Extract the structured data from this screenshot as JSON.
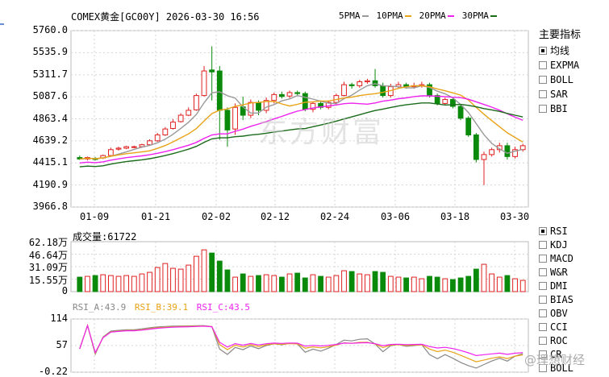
{
  "header": {
    "title": "COMEX黄金[GC00Y] 2026-03-30 16:56",
    "ma": [
      {
        "label": "5PMA",
        "color": "#999999"
      },
      {
        "label": "10PMA",
        "color": "#e8a317"
      },
      {
        "label": "20PMA",
        "color": "#ee22ee"
      },
      {
        "label": "30PMA",
        "color": "#1a6b1a"
      }
    ]
  },
  "price_axis": [
    "5760.0",
    "5535.9",
    "5311.7",
    "5087.6",
    "4863.4",
    "4639.2",
    "4415.1",
    "4190.9",
    "3966.8"
  ],
  "date_axis": [
    "01-09",
    "01-21",
    "02-02",
    "02-12",
    "02-24",
    "03-06",
    "03-18",
    "03-30"
  ],
  "volume": {
    "label": "成交量:61722",
    "axis": [
      "62.18万",
      "46.64万",
      "31.09万",
      "15.55万",
      "0"
    ]
  },
  "rsi": {
    "labels": [
      {
        "text": "RSI_A:43.9",
        "color": "#888888"
      },
      {
        "text": "RSI_B:39.1",
        "color": "#e8a317"
      },
      {
        "text": "RSI_C:43.5",
        "color": "#ee22ee"
      }
    ],
    "axis": [
      "114",
      "57",
      "-0.22"
    ]
  },
  "sidebar": {
    "title": "主要指标",
    "main_indicators": [
      {
        "label": "均线",
        "checked": true
      },
      {
        "label": "EXPMA",
        "checked": false
      },
      {
        "label": "BOLL",
        "checked": false
      },
      {
        "label": "SAR",
        "checked": false
      },
      {
        "label": "BBI",
        "checked": false
      }
    ],
    "sub_indicators": [
      {
        "label": "RSI",
        "checked": true
      },
      {
        "label": "KDJ",
        "checked": false
      },
      {
        "label": "MACD",
        "checked": false
      },
      {
        "label": "W&R",
        "checked": false
      },
      {
        "label": "DMI",
        "checked": false
      },
      {
        "label": "BIAS",
        "checked": false
      },
      {
        "label": "OBV",
        "checked": false
      },
      {
        "label": "CCI",
        "checked": false
      },
      {
        "label": "ROC",
        "checked": false
      },
      {
        "label": "CR",
        "checked": false
      },
      {
        "label": "BOLL",
        "checked": false
      }
    ]
  },
  "watermark": "东方财富",
  "weibo": "@理想财经",
  "colors": {
    "up": "#e02020",
    "down": "#0a8a0a",
    "grid": "#d6d6d6"
  },
  "chart_data": {
    "type": "candlestick",
    "candles": [
      [
        4470,
        4455,
        4490,
        4445
      ],
      [
        4455,
        4470,
        4480,
        4440
      ],
      [
        4460,
        4450,
        4475,
        4440
      ],
      [
        4465,
        4490,
        4500,
        4455
      ],
      [
        4490,
        4550,
        4570,
        4485
      ],
      [
        4555,
        4565,
        4580,
        4540
      ],
      [
        4565,
        4580,
        4590,
        4555
      ],
      [
        4575,
        4580,
        4590,
        4565
      ],
      [
        4580,
        4600,
        4610,
        4570
      ],
      [
        4600,
        4640,
        4655,
        4595
      ],
      [
        4640,
        4700,
        4720,
        4630
      ],
      [
        4700,
        4760,
        4780,
        4690
      ],
      [
        4765,
        4830,
        4860,
        4755
      ],
      [
        4835,
        4900,
        4920,
        4825
      ],
      [
        4900,
        4950,
        4980,
        4890
      ],
      [
        4955,
        5100,
        5120,
        4945
      ],
      [
        5100,
        5350,
        5400,
        5090
      ],
      [
        5360,
        5340,
        5600,
        5050
      ],
      [
        5350,
        4950,
        5400,
        4650
      ],
      [
        4950,
        4750,
        4980,
        4580
      ],
      [
        4760,
        4980,
        5020,
        4700
      ],
      [
        4985,
        4900,
        5090,
        4850
      ],
      [
        4900,
        5030,
        5060,
        4870
      ],
      [
        5030,
        4950,
        5050,
        4900
      ],
      [
        4950,
        5050,
        5080,
        4920
      ],
      [
        5050,
        5110,
        5130,
        5020
      ],
      [
        5110,
        5090,
        5140,
        5070
      ],
      [
        5095,
        5130,
        5150,
        5075
      ],
      [
        5130,
        5120,
        5150,
        5100
      ],
      [
        5120,
        4960,
        5140,
        4940
      ],
      [
        4960,
        5020,
        5040,
        4930
      ],
      [
        5020,
        4980,
        5050,
        4960
      ],
      [
        4980,
        5030,
        5050,
        4960
      ],
      [
        5030,
        5100,
        5120,
        5010
      ],
      [
        5100,
        5210,
        5240,
        5090
      ],
      [
        5210,
        5200,
        5230,
        5170
      ],
      [
        5200,
        5240,
        5260,
        5180
      ],
      [
        5240,
        5250,
        5270,
        5220
      ],
      [
        5250,
        5200,
        5370,
        5180
      ],
      [
        5200,
        5100,
        5230,
        5080
      ],
      [
        5100,
        5190,
        5220,
        5080
      ],
      [
        5190,
        5210,
        5240,
        5170
      ],
      [
        5210,
        5190,
        5230,
        5170
      ],
      [
        5190,
        5200,
        5230,
        5170
      ],
      [
        5200,
        5210,
        5240,
        5180
      ],
      [
        5210,
        5100,
        5230,
        5080
      ],
      [
        5100,
        5020,
        5120,
        5000
      ],
      [
        5020,
        5060,
        5080,
        5000
      ],
      [
        5060,
        4990,
        5080,
        4970
      ],
      [
        4990,
        4870,
        5010,
        4850
      ],
      [
        4870,
        4700,
        4890,
        4680
      ],
      [
        4700,
        4450,
        4720,
        4420
      ],
      [
        4450,
        4500,
        4530,
        4190
      ],
      [
        4500,
        4550,
        4570,
        4480
      ],
      [
        4550,
        4590,
        4620,
        4520
      ],
      [
        4590,
        4480,
        4620,
        4450
      ],
      [
        4480,
        4550,
        4580,
        4460
      ],
      [
        4550,
        4590,
        4610,
        4530
      ]
    ],
    "volume_w": [
      18,
      19,
      20,
      21,
      20,
      19,
      20,
      19,
      22,
      24,
      30,
      35,
      29,
      28,
      33,
      44,
      52,
      48,
      38,
      27,
      18,
      22,
      19,
      20,
      21,
      20,
      18,
      22,
      23,
      17,
      21,
      19,
      18,
      20,
      26,
      25,
      22,
      21,
      25,
      24,
      19,
      18,
      17,
      18,
      16,
      19,
      18,
      16,
      15,
      17,
      19,
      28,
      34,
      22,
      18,
      20,
      16,
      14
    ]
  }
}
